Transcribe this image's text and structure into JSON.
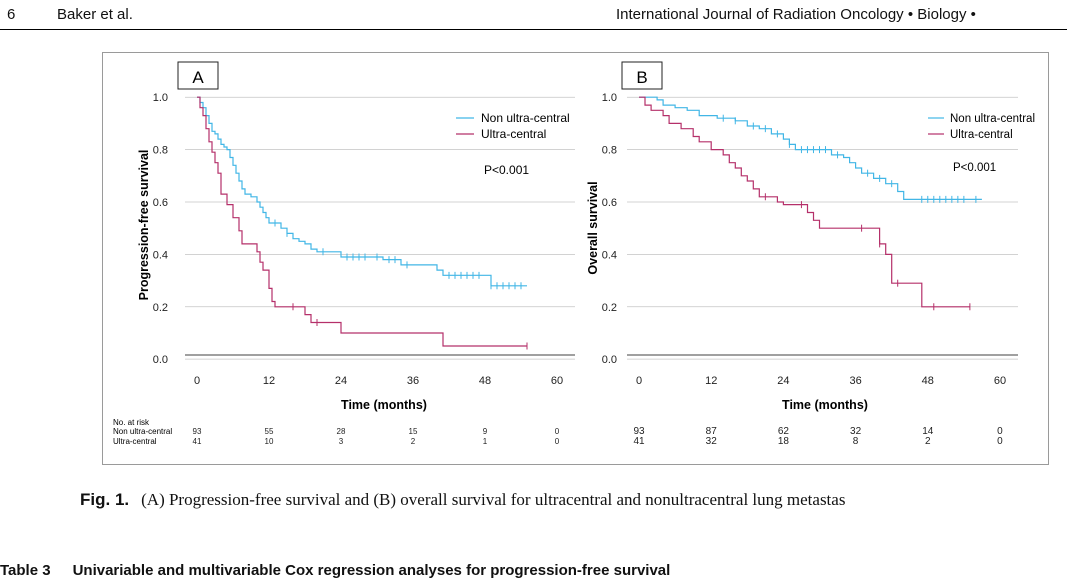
{
  "header": {
    "page_number": "6",
    "author": "Baker et al.",
    "journal": "International Journal of Radiation Oncology • Biology •"
  },
  "caption": {
    "label": "Fig. 1.",
    "text": "(A) Progression-free survival and (B) overall survival for ultracentral and nonultracentral lung metastas"
  },
  "table_title": {
    "label": "Table 3",
    "text": "Univariable and multivariable Cox regression analyses for progression-free survival"
  },
  "colors": {
    "non_ultra": "#41b6e6",
    "ultra": "#b5306a"
  },
  "chart_data": [
    {
      "type": "line",
      "panel": "A",
      "xlabel": "Time (months)",
      "ylabel": "Progression-free survival",
      "xticks": [
        0,
        12,
        24,
        36,
        48,
        60
      ],
      "yticks": [
        "0.0",
        "0.2",
        "0.4",
        "0.6",
        "0.8",
        "1.0"
      ],
      "xlim": [
        -2,
        63
      ],
      "ylim": [
        -0.03,
        1.02
      ],
      "legend": [
        "Non ultra-central",
        "Ultra-central"
      ],
      "p_value": "P<0.001",
      "risk_table": {
        "title": "No. at risk",
        "rows": [
          {
            "label": "Non ultra-central",
            "values": [
              "93",
              "55",
              "28",
              "15",
              "9",
              "0"
            ]
          },
          {
            "label": "Ultra-central",
            "values": [
              "41",
              "10",
              "3",
              "2",
              "1",
              "0"
            ]
          }
        ]
      },
      "series": [
        {
          "name": "Non ultra-central",
          "points": [
            [
              0,
              1
            ],
            [
              0.5,
              0.98
            ],
            [
              1,
              0.96
            ],
            [
              1.5,
              0.93
            ],
            [
              2,
              0.9
            ],
            [
              2.5,
              0.87
            ],
            [
              3,
              0.86
            ],
            [
              3.5,
              0.84
            ],
            [
              4,
              0.82
            ],
            [
              4.5,
              0.81
            ],
            [
              5,
              0.8
            ],
            [
              5.5,
              0.77
            ],
            [
              6,
              0.74
            ],
            [
              6.5,
              0.71
            ],
            [
              7,
              0.68
            ],
            [
              7.5,
              0.65
            ],
            [
              8,
              0.63
            ],
            [
              9,
              0.62
            ],
            [
              10,
              0.6
            ],
            [
              10.5,
              0.58
            ],
            [
              11,
              0.56
            ],
            [
              11.5,
              0.54
            ],
            [
              12,
              0.52
            ],
            [
              13,
              0.52
            ],
            [
              14,
              0.5
            ],
            [
              15,
              0.48
            ],
            [
              16,
              0.46
            ],
            [
              17,
              0.45
            ],
            [
              18,
              0.44
            ],
            [
              19,
              0.42
            ],
            [
              20,
              0.41
            ],
            [
              23,
              0.41
            ],
            [
              24,
              0.39
            ],
            [
              30,
              0.39
            ],
            [
              31,
              0.38
            ],
            [
              33,
              0.38
            ],
            [
              34,
              0.36
            ],
            [
              39,
              0.36
            ],
            [
              40,
              0.34
            ],
            [
              41,
              0.32
            ],
            [
              48,
              0.32
            ],
            [
              49,
              0.28
            ],
            [
              55,
              0.28
            ]
          ],
          "censor": [
            13,
            15,
            21,
            25,
            26,
            27,
            28,
            30,
            32,
            33,
            35,
            42,
            43,
            44,
            45,
            46,
            47,
            49,
            50,
            51,
            52,
            53,
            54
          ]
        },
        {
          "name": "Ultra-central",
          "points": [
            [
              0,
              1
            ],
            [
              0.5,
              0.96
            ],
            [
              1,
              0.93
            ],
            [
              1.5,
              0.88
            ],
            [
              2,
              0.83
            ],
            [
              2.5,
              0.79
            ],
            [
              3,
              0.75
            ],
            [
              3.5,
              0.71
            ],
            [
              4,
              0.63
            ],
            [
              5,
              0.59
            ],
            [
              6,
              0.54
            ],
            [
              7,
              0.49
            ],
            [
              7.5,
              0.44
            ],
            [
              10,
              0.41
            ],
            [
              10.5,
              0.37
            ],
            [
              11,
              0.34
            ],
            [
              12,
              0.27
            ],
            [
              12.5,
              0.22
            ],
            [
              13,
              0.2
            ],
            [
              17,
              0.2
            ],
            [
              18,
              0.17
            ],
            [
              19,
              0.14
            ],
            [
              24,
              0.1
            ],
            [
              41,
              0.05
            ],
            [
              55,
              0.05
            ]
          ],
          "censor": [
            16,
            20,
            55
          ]
        }
      ]
    },
    {
      "type": "line",
      "panel": "B",
      "xlabel": "Time (months)",
      "ylabel": "Overall survival",
      "xticks": [
        0,
        12,
        24,
        36,
        48,
        60
      ],
      "yticks": [
        "0.0",
        "0.2",
        "0.4",
        "0.6",
        "0.8",
        "1.0"
      ],
      "xlim": [
        -2,
        63
      ],
      "ylim": [
        -0.03,
        1.02
      ],
      "legend": [
        "Non ultra-central",
        "Ultra-central"
      ],
      "p_value": "P<0.001",
      "risk_table": {
        "rows": [
          {
            "label": "Non ultra-central",
            "values": [
              "93",
              "87",
              "62",
              "32",
              "14",
              "0"
            ]
          },
          {
            "label": "Ultra-central",
            "values": [
              "41",
              "32",
              "18",
              "8",
              "2",
              "0"
            ]
          }
        ]
      },
      "series": [
        {
          "name": "Non ultra-central",
          "points": [
            [
              0,
              1
            ],
            [
              3,
              0.99
            ],
            [
              4,
              0.97
            ],
            [
              6,
              0.96
            ],
            [
              8,
              0.95
            ],
            [
              10,
              0.93
            ],
            [
              13,
              0.92
            ],
            [
              16,
              0.91
            ],
            [
              18,
              0.89
            ],
            [
              20,
              0.88
            ],
            [
              22,
              0.86
            ],
            [
              24,
              0.84
            ],
            [
              25,
              0.82
            ],
            [
              26,
              0.8
            ],
            [
              31,
              0.8
            ],
            [
              32,
              0.78
            ],
            [
              34,
              0.77
            ],
            [
              35,
              0.75
            ],
            [
              36,
              0.73
            ],
            [
              37,
              0.71
            ],
            [
              39,
              0.69
            ],
            [
              41,
              0.67
            ],
            [
              43,
              0.64
            ],
            [
              44,
              0.61
            ],
            [
              57,
              0.61
            ]
          ],
          "censor": [
            14,
            16,
            19,
            21,
            23,
            25,
            27,
            28,
            29,
            30,
            31,
            33,
            38,
            40,
            42,
            47,
            48,
            49,
            50,
            51,
            52,
            53,
            54,
            56
          ]
        },
        {
          "name": "Ultra-central",
          "points": [
            [
              0,
              1
            ],
            [
              1,
              0.97
            ],
            [
              2,
              0.95
            ],
            [
              4,
              0.93
            ],
            [
              5,
              0.9
            ],
            [
              7,
              0.88
            ],
            [
              9,
              0.85
            ],
            [
              10,
              0.83
            ],
            [
              12,
              0.8
            ],
            [
              14,
              0.78
            ],
            [
              15,
              0.75
            ],
            [
              16,
              0.73
            ],
            [
              17,
              0.7
            ],
            [
              18,
              0.68
            ],
            [
              19,
              0.65
            ],
            [
              20,
              0.62
            ],
            [
              22,
              0.62
            ],
            [
              23,
              0.6
            ],
            [
              24,
              0.59
            ],
            [
              27,
              0.59
            ],
            [
              28,
              0.56
            ],
            [
              29,
              0.53
            ],
            [
              30,
              0.5
            ],
            [
              39,
              0.5
            ],
            [
              40,
              0.44
            ],
            [
              41,
              0.4
            ],
            [
              42,
              0.29
            ],
            [
              46,
              0.29
            ],
            [
              47,
              0.2
            ],
            [
              55,
              0.2
            ]
          ],
          "censor": [
            21,
            27,
            37,
            40,
            43,
            49,
            55
          ]
        }
      ]
    }
  ]
}
